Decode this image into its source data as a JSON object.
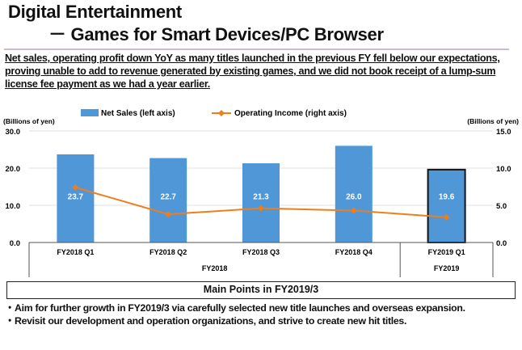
{
  "header": {
    "title": "Digital Entertainment",
    "subtitle": "－ Games for Smart Devices/PC Browser"
  },
  "summary": "Net sales, operating profit down YoY as many titles launched in the previous FY fell below our expectations, proving unable to add to revenue generated by existing games, and we did not book receipt of a lump-sum license fee payment as we had a year earlier.",
  "chart_data": {
    "type": "bar+line",
    "categories": [
      "FY2018 Q1",
      "FY2018 Q2",
      "FY2018 Q3",
      "FY2018 Q4",
      "FY2019 Q1"
    ],
    "groups": [
      {
        "label": "FY2018",
        "count": 4
      },
      {
        "label": "FY2019",
        "count": 1
      }
    ],
    "ylabel_left": "(Billions of yen)",
    "ylabel_right": "(Billions of yen)",
    "ylim_left": [
      0,
      30
    ],
    "ylim_right": [
      0,
      15
    ],
    "yticks_left": [
      "0.0",
      "10.0",
      "20.0",
      "30.0"
    ],
    "yticks_right": [
      "0.0",
      "5.0",
      "10.0",
      "15.0"
    ],
    "grid": true,
    "legend_position": "top",
    "series": [
      {
        "name": "Net Sales (left axis)",
        "type": "bar",
        "axis": "left",
        "color": "#4f97d7",
        "values": [
          23.7,
          22.7,
          21.3,
          26.0,
          19.6
        ],
        "labels": [
          "23.7",
          "22.7",
          "21.3",
          "26.0",
          "19.6"
        ],
        "highlighted_index": 4
      },
      {
        "name": "Operating Income (right axis)",
        "type": "line",
        "axis": "right",
        "color": "#f07d1c",
        "values": [
          7.4,
          3.8,
          4.6,
          4.3,
          3.4
        ]
      }
    ]
  },
  "main_points": {
    "title": "Main Points in FY2019/3",
    "bullets": [
      "・Aim for further growth in FY2019/3 via carefully selected new title launches and overseas expansion.",
      "・Revisit our development and operation organizations, and strive to create new hit titles."
    ]
  }
}
